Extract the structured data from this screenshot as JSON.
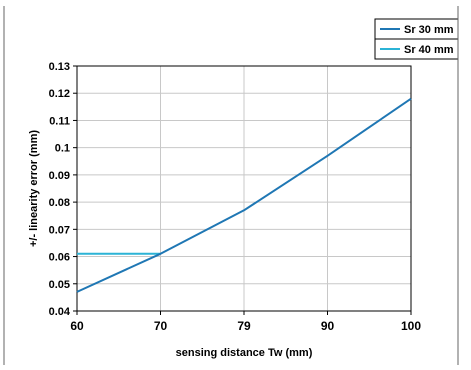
{
  "chart_data": {
    "type": "line",
    "xlabel": "sensing distance Tw (mm)",
    "ylabel": "+/- linearity error (mm)",
    "x_ticks": [
      60,
      70,
      79,
      90,
      100
    ],
    "y_ticks": [
      "0.04",
      "0.05",
      "0.06",
      "0.07",
      "0.08",
      "0.09",
      "0.1",
      "0.11",
      "0.12",
      "0.13"
    ],
    "ylim": [
      0.04,
      0.13
    ],
    "grid": true,
    "legend_position": "top-right",
    "series": [
      {
        "name": "Sr 30 mm",
        "color": "#1f77b4",
        "x": [
          60,
          70,
          79,
          90,
          100
        ],
        "y": [
          0.047,
          0.061,
          0.077,
          0.097,
          0.118
        ]
      },
      {
        "name": "Sr 40 mm",
        "color": "#2bb3d6",
        "x": [
          60,
          70
        ],
        "y": [
          0.061,
          0.061
        ]
      }
    ]
  }
}
